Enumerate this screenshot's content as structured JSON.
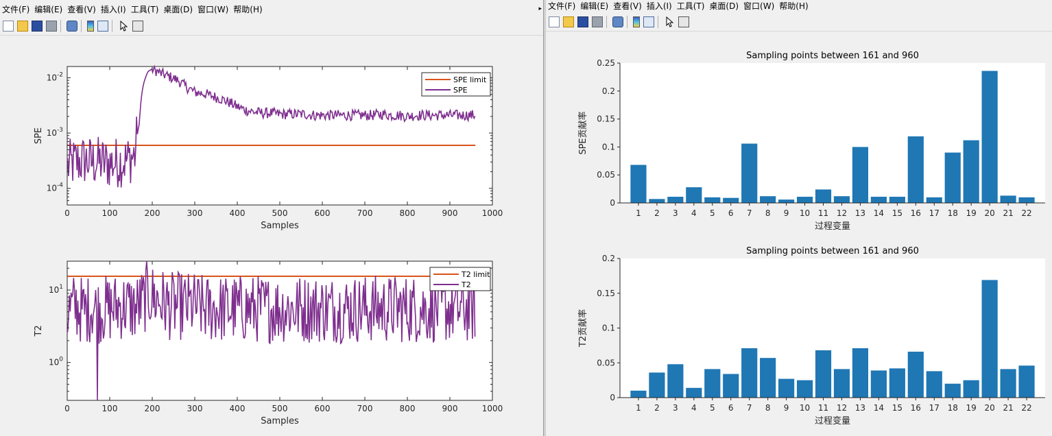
{
  "menu": [
    "文件(F)",
    "编辑(E)",
    "查看(V)",
    "插入(I)",
    "工具(T)",
    "桌面(D)",
    "窗口(W)",
    "帮助(H)"
  ],
  "toolbar_icons": [
    "new-figure-icon",
    "open-file-icon",
    "save-icon",
    "print-icon",
    "link-plot-icon",
    "insert-colorbar-icon",
    "insert-legend-icon",
    "edit-pointer-icon",
    "property-inspector-icon"
  ],
  "colors": {
    "limit": "#d95319",
    "stat": "#7e2f8e",
    "bar": "#1f77b4"
  },
  "left_figure": {
    "spe_plot": {
      "type": "line",
      "yscale": "log",
      "ylabel": "SPE",
      "xlabel": "Samples",
      "xlim": [
        0,
        1000
      ],
      "ylim": [
        5e-05,
        0.016
      ],
      "xticks": [
        "0",
        "100",
        "200",
        "300",
        "400",
        "500",
        "600",
        "700",
        "800",
        "900",
        "1000"
      ],
      "yticks": [
        {
          "base": "10",
          "exp": "-4",
          "value": 0.0001
        },
        {
          "base": "10",
          "exp": "-3",
          "value": 0.001
        },
        {
          "base": "10",
          "exp": "-2",
          "value": 0.01
        }
      ],
      "legend": [
        "SPE limit",
        "SPE"
      ],
      "limit_value": 0.0006,
      "series": [
        {
          "name": "SPE",
          "x": [
            1,
            20,
            40,
            60,
            80,
            100,
            120,
            140,
            160,
            170,
            180,
            190,
            200,
            220,
            240,
            260,
            280,
            300,
            320,
            340,
            360,
            380,
            400,
            420,
            440,
            460,
            480,
            500,
            520,
            540,
            560,
            580,
            600,
            620,
            640,
            660,
            680,
            700,
            720,
            740,
            760,
            780,
            800,
            820,
            840,
            860,
            880,
            900,
            920,
            940,
            960
          ],
          "y": [
            0.00025,
            0.0003,
            0.00032,
            0.0003,
            0.0003,
            0.00028,
            0.0003,
            0.00032,
            0.0004,
            0.0015,
            0.008,
            0.013,
            0.0145,
            0.012,
            0.0105,
            0.009,
            0.0068,
            0.0055,
            0.0052,
            0.0047,
            0.0042,
            0.0036,
            0.003,
            0.0026,
            0.0024,
            0.0023,
            0.0023,
            0.0022,
            0.0022,
            0.0022,
            0.0022,
            0.0021,
            0.0021,
            0.0021,
            0.0021,
            0.0021,
            0.0021,
            0.0021,
            0.0021,
            0.0022,
            0.0021,
            0.0021,
            0.002,
            0.0021,
            0.0021,
            0.0021,
            0.0021,
            0.0021,
            0.0021,
            0.0021,
            0.0021
          ]
        }
      ]
    },
    "t2_plot": {
      "type": "line",
      "yscale": "log",
      "ylabel": "T2",
      "xlabel": "Samples",
      "xlim": [
        0,
        1000
      ],
      "ylim": [
        0.3,
        25
      ],
      "xticks": [
        "0",
        "100",
        "200",
        "300",
        "400",
        "500",
        "600",
        "700",
        "800",
        "900",
        "1000"
      ],
      "yticks": [
        {
          "base": "10",
          "exp": "0",
          "value": 1
        },
        {
          "base": "10",
          "exp": "1",
          "value": 10
        }
      ],
      "legend": [
        "T2 limit",
        "T2"
      ],
      "limit_value": 15.5,
      "series": [
        {
          "name": "T2",
          "x": [
            1,
            20,
            40,
            60,
            70,
            80,
            100,
            120,
            140,
            160,
            180,
            190,
            200,
            220,
            240,
            260,
            280,
            300,
            320,
            340,
            360,
            380,
            400,
            420,
            440,
            460,
            480,
            500,
            520,
            540,
            560,
            580,
            600,
            620,
            640,
            660,
            680,
            700,
            720,
            740,
            760,
            780,
            800,
            820,
            840,
            860,
            880,
            900,
            920,
            940,
            960
          ],
          "y": [
            5,
            6,
            5,
            6,
            5,
            5.5,
            5.5,
            6,
            6,
            5.5,
            7,
            9,
            8,
            7,
            6,
            6,
            6,
            6,
            5.5,
            5.5,
            5.5,
            5.5,
            5.5,
            5.5,
            5.5,
            5.5,
            5.5,
            5.5,
            5.5,
            5.5,
            5.5,
            5.5,
            5.5,
            5.5,
            5.5,
            5.5,
            5.5,
            5.5,
            5.5,
            5.5,
            5.5,
            5.5,
            5.5,
            5.5,
            5.5,
            5.5,
            5.5,
            5.5,
            5.5,
            5.5,
            5.5
          ]
        }
      ]
    }
  },
  "right_figure": {
    "spe_bar": {
      "type": "bar",
      "title": "Sampling points between 161 and 960",
      "ylabel": "SPE贡献率",
      "xlabel": "过程变量",
      "ylim": [
        0,
        0.25
      ],
      "yticks": [
        "0",
        "0.05",
        "0.1",
        "0.15",
        "0.2",
        "0.25"
      ],
      "categories": [
        "1",
        "2",
        "3",
        "4",
        "5",
        "6",
        "7",
        "8",
        "9",
        "10",
        "11",
        "12",
        "13",
        "14",
        "15",
        "16",
        "17",
        "18",
        "19",
        "20",
        "21",
        "22"
      ],
      "values": [
        0.068,
        0.007,
        0.011,
        0.028,
        0.01,
        0.009,
        0.106,
        0.012,
        0.006,
        0.011,
        0.024,
        0.012,
        0.1,
        0.011,
        0.011,
        0.119,
        0.01,
        0.09,
        0.112,
        0.236,
        0.013,
        0.01
      ]
    },
    "t2_bar": {
      "type": "bar",
      "title": "Sampling points between 161 and 960",
      "ylabel": "T2贡献率",
      "xlabel": "过程变量",
      "ylim": [
        0,
        0.2
      ],
      "yticks": [
        "0",
        "0.05",
        "0.1",
        "0.15",
        "0.2"
      ],
      "categories": [
        "1",
        "2",
        "3",
        "4",
        "5",
        "6",
        "7",
        "8",
        "9",
        "10",
        "11",
        "12",
        "13",
        "14",
        "15",
        "16",
        "17",
        "18",
        "19",
        "20",
        "21",
        "22"
      ],
      "values": [
        0.01,
        0.036,
        0.048,
        0.014,
        0.041,
        0.034,
        0.071,
        0.057,
        0.027,
        0.025,
        0.068,
        0.041,
        0.071,
        0.039,
        0.042,
        0.066,
        0.038,
        0.02,
        0.025,
        0.169,
        0.041,
        0.046
      ]
    }
  }
}
